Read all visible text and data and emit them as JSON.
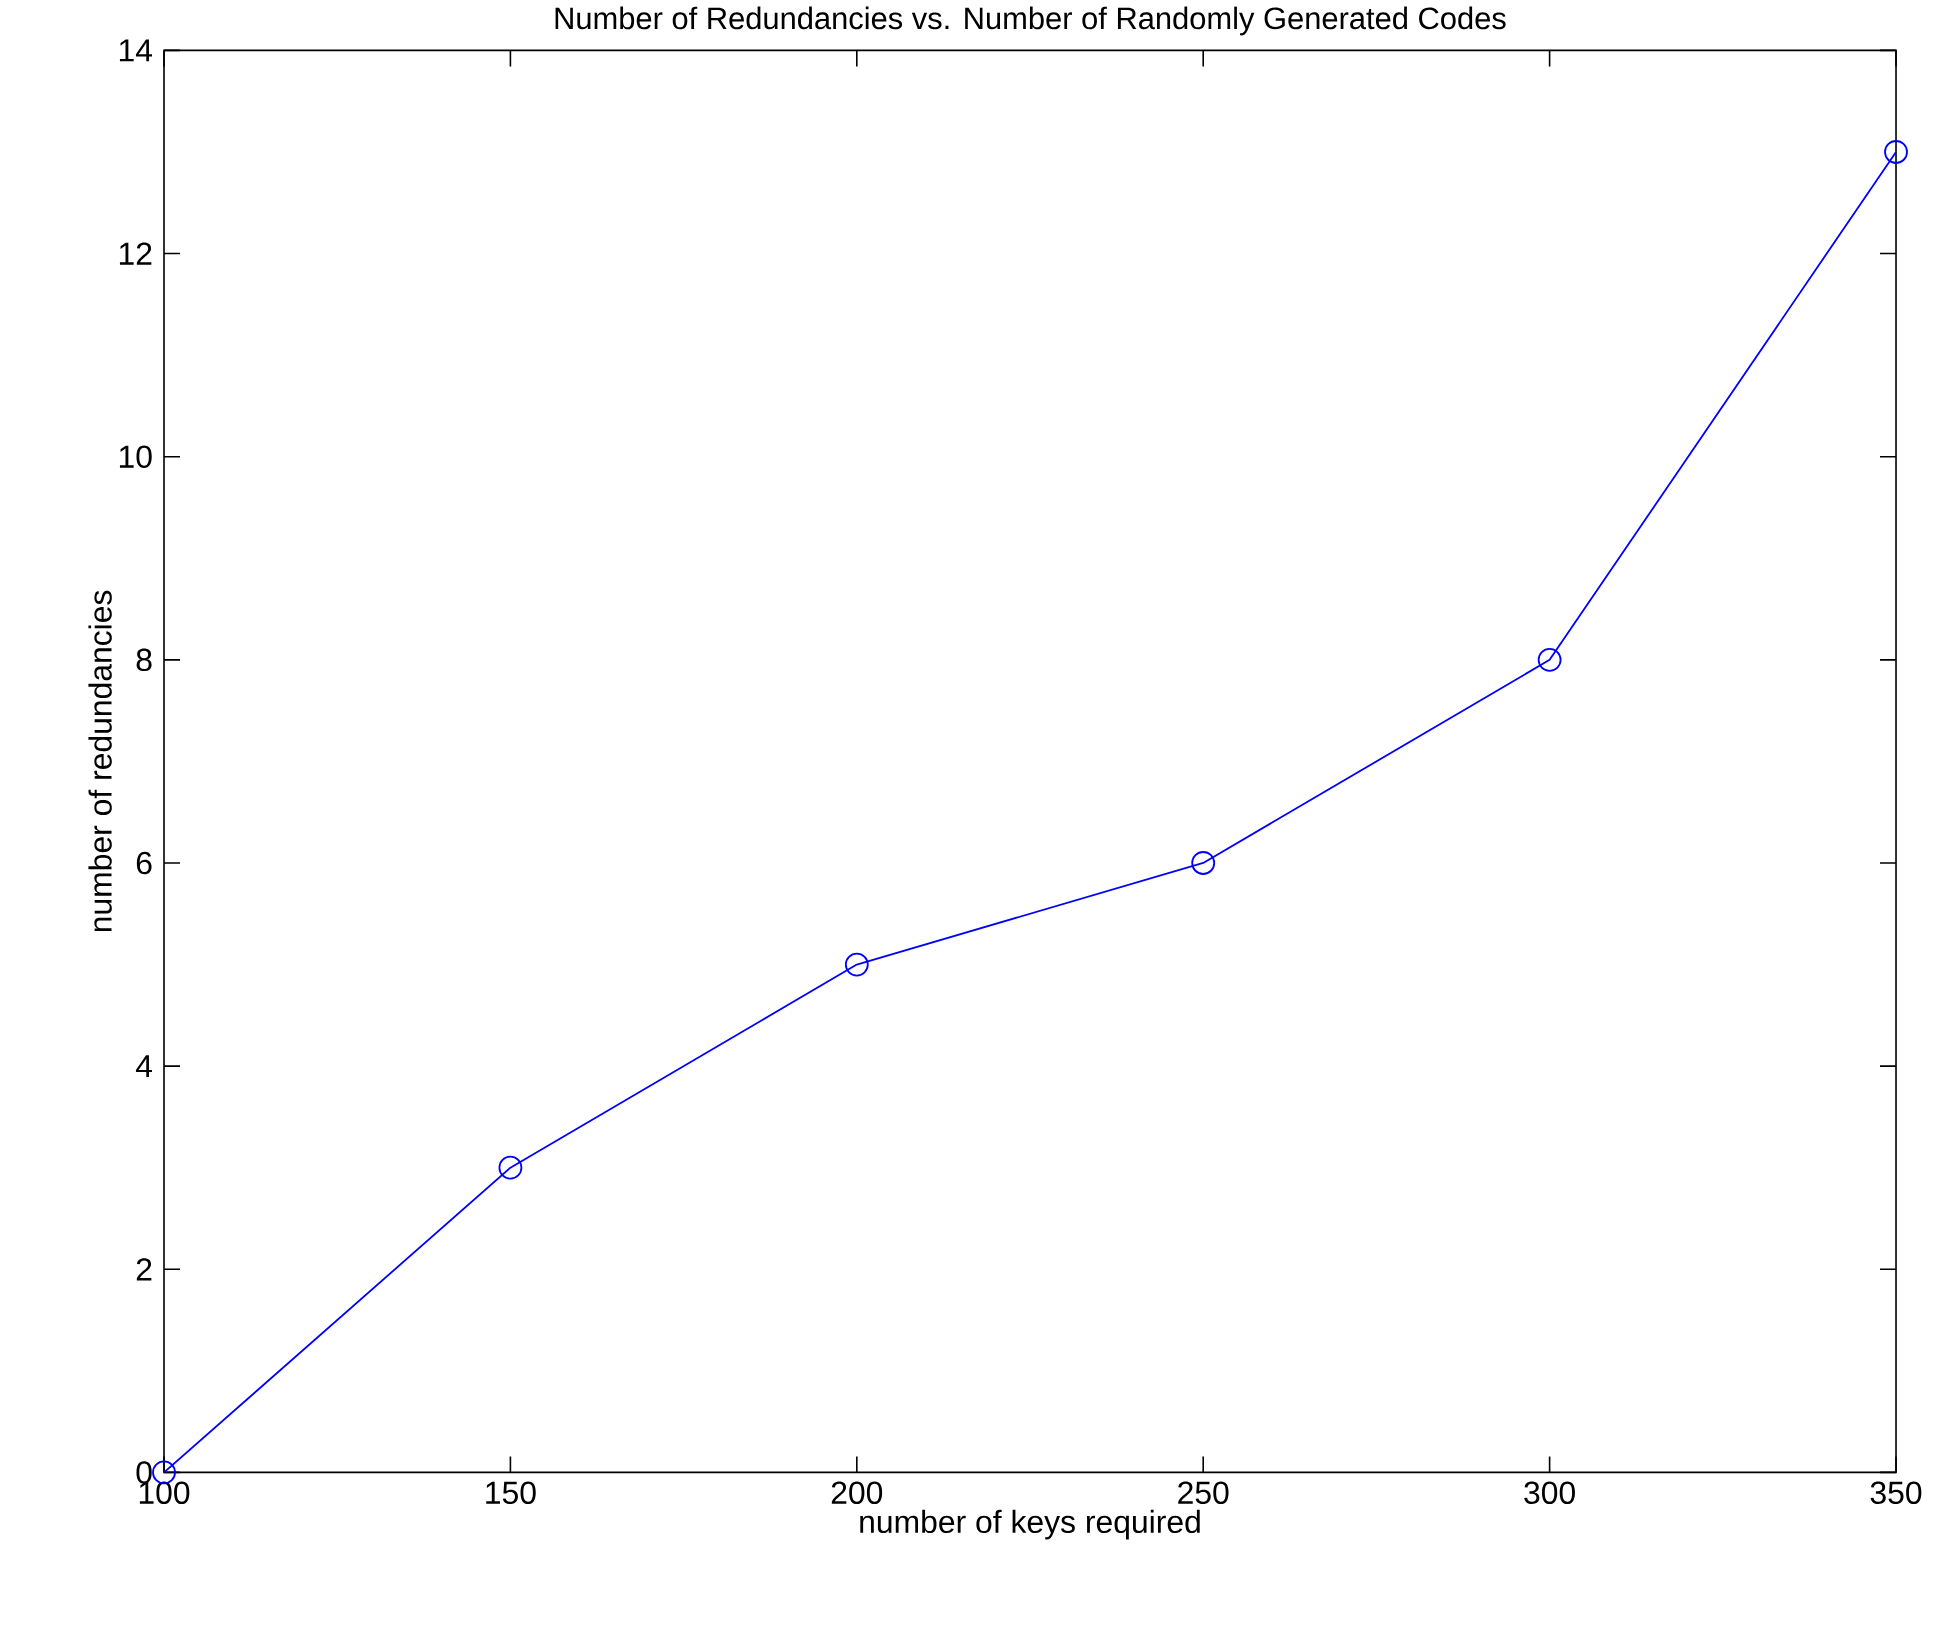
{
  "chart_data": {
    "type": "line",
    "title": "Number of Redundancies vs. Number of Randomly Generated Codes",
    "xlabel": "number of keys required",
    "ylabel": "number of redundancies",
    "x": [
      100,
      150,
      200,
      250,
      300,
      350
    ],
    "series": [
      {
        "color": "#0000ff",
        "values": [
          0,
          3,
          5,
          6,
          8,
          13
        ]
      }
    ],
    "xlim": [
      100,
      350
    ],
    "xticks": [
      100,
      150,
      200,
      250,
      300,
      350
    ],
    "ylim": [
      0,
      14
    ],
    "yticks": [
      0,
      2,
      4,
      6,
      8,
      10,
      12,
      14
    ],
    "grid": false,
    "marker": "circle",
    "line_style": "solid"
  }
}
